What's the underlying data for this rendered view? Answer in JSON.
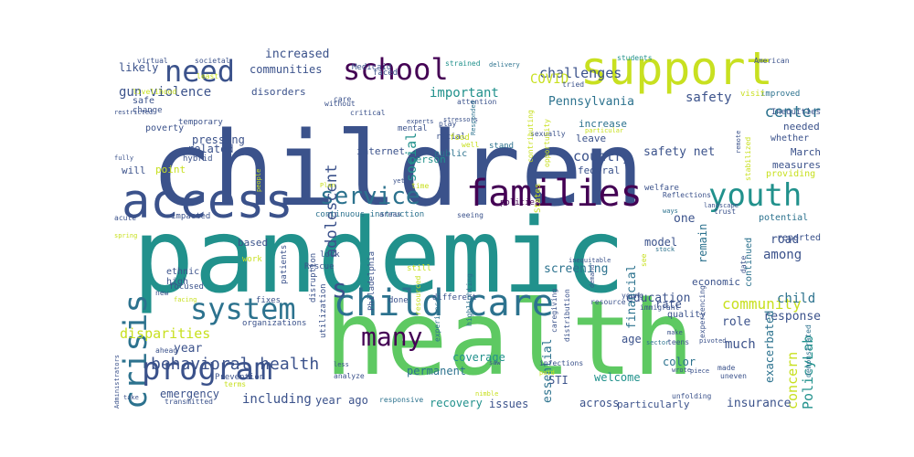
{
  "figure": {
    "background": "#ffffff",
    "palette": [
      "#3b518b",
      "#21918c",
      "#5ec962",
      "#c8e020",
      "#440154",
      "#2c728e",
      "#fde725"
    ]
  },
  "words": [
    {
      "text": "children",
      "color": "#3b528b"
    },
    {
      "text": "pandemic",
      "color": "#21918c"
    },
    {
      "text": "health",
      "color": "#5ec962"
    },
    {
      "text": "support",
      "color": "#c8e020"
    },
    {
      "text": "access",
      "color": "#3b528b"
    },
    {
      "text": "families",
      "color": "#440154"
    },
    {
      "text": "child care",
      "color": "#2c728e"
    },
    {
      "text": "crisis",
      "color": "#2c728e"
    },
    {
      "text": "program",
      "color": "#3b528b"
    },
    {
      "text": "school",
      "color": "#440154"
    },
    {
      "text": "need",
      "color": "#3b528b"
    },
    {
      "text": "youth",
      "color": "#21918c"
    },
    {
      "text": "service",
      "color": "#2c728e"
    },
    {
      "text": "system",
      "color": "#2c728e"
    },
    {
      "text": "many",
      "color": "#440154"
    },
    {
      "text": "behavioral health",
      "color": "#3b528b"
    },
    {
      "text": "adolescent",
      "color": "#3b528b"
    },
    {
      "text": "s",
      "color": "#3b528b"
    },
    {
      "text": "gun violence",
      "color": "#3b528b"
    },
    {
      "text": "challenges",
      "color": "#3b528b"
    },
    {
      "text": "communities",
      "color": "#3b528b"
    },
    {
      "text": "increased",
      "color": "#3b528b"
    },
    {
      "text": "important",
      "color": "#21918c"
    },
    {
      "text": "social",
      "color": "#21918c"
    },
    {
      "text": "Pennsylvania",
      "color": "#2c728e"
    },
    {
      "text": "COVID",
      "color": "#c8e020"
    },
    {
      "text": "safety",
      "color": "#3b528b"
    },
    {
      "text": "center",
      "color": "#2c728e"
    },
    {
      "text": "concern",
      "color": "#c8e020"
    },
    {
      "text": "PolicyLab",
      "color": "#21918c"
    },
    {
      "text": "community",
      "color": "#c8e020"
    },
    {
      "text": "response",
      "color": "#3b528b"
    },
    {
      "text": "education",
      "color": "#3b528b"
    },
    {
      "text": "financial",
      "color": "#2c728e"
    },
    {
      "text": "among",
      "color": "#3b528b"
    },
    {
      "text": "child",
      "color": "#2c728e"
    },
    {
      "text": "screening",
      "color": "#2c728e"
    },
    {
      "text": "country",
      "color": "#3b528b"
    },
    {
      "text": "safety net",
      "color": "#3b528b"
    },
    {
      "text": "person",
      "color": "#21918c"
    },
    {
      "text": "internet",
      "color": "#3b528b"
    },
    {
      "text": "public",
      "color": "#2c728e"
    },
    {
      "text": "likely",
      "color": "#3b528b"
    },
    {
      "text": "pressing",
      "color": "#3b528b"
    },
    {
      "text": "related",
      "color": "#3b528b"
    },
    {
      "text": "disparities",
      "color": "#c8e020"
    },
    {
      "text": "year",
      "color": "#3b528b"
    },
    {
      "text": "emergency",
      "color": "#3b528b"
    },
    {
      "text": "including",
      "color": "#3b528b"
    },
    {
      "text": "year ago",
      "color": "#3b528b"
    },
    {
      "text": "recovery",
      "color": "#21918c"
    },
    {
      "text": "permanent",
      "color": "#2c728e"
    },
    {
      "text": "coverage",
      "color": "#21918c"
    },
    {
      "text": "welcome",
      "color": "#21918c"
    },
    {
      "text": "insurance",
      "color": "#3b528b"
    },
    {
      "text": "across",
      "color": "#3b528b"
    },
    {
      "text": "particularly",
      "color": "#3b528b"
    },
    {
      "text": "issues",
      "color": "#3b528b"
    },
    {
      "text": "STI",
      "color": "#3b528b"
    },
    {
      "text": "essential",
      "color": "#2c728e"
    },
    {
      "text": "much",
      "color": "#3b528b"
    },
    {
      "text": "role",
      "color": "#3b528b"
    },
    {
      "text": "color",
      "color": "#2c728e"
    },
    {
      "text": "age",
      "color": "#3b528b"
    },
    {
      "text": "rate",
      "color": "#3b528b"
    },
    {
      "text": "model",
      "color": "#3b528b"
    },
    {
      "text": "road",
      "color": "#3b528b"
    },
    {
      "text": "one",
      "color": "#3b528b"
    },
    {
      "text": "remain",
      "color": "#2c728e"
    },
    {
      "text": "economic",
      "color": "#3b528b"
    },
    {
      "text": "quality",
      "color": "#3b528b"
    },
    {
      "text": "federal",
      "color": "#3b528b"
    },
    {
      "text": "leave",
      "color": "#3b528b"
    },
    {
      "text": "increase",
      "color": "#2c728e"
    },
    {
      "text": "needed",
      "color": "#3b528b"
    },
    {
      "text": "March",
      "color": "#3b528b"
    },
    {
      "text": "measures",
      "color": "#3b528b"
    },
    {
      "text": "continued",
      "color": "#2c728e"
    },
    {
      "text": "exacerbated",
      "color": "#2c728e"
    },
    {
      "text": "reported",
      "color": "#3b528b"
    },
    {
      "text": "potential",
      "color": "#2c728e"
    },
    {
      "text": "providing",
      "color": "#c8e020"
    },
    {
      "text": "whether",
      "color": "#3b528b"
    },
    {
      "text": "Inequities",
      "color": "#3b528b"
    },
    {
      "text": "improved",
      "color": "#2c728e"
    },
    {
      "text": "visit",
      "color": "#c8e020"
    },
    {
      "text": "based",
      "color": "#3b528b"
    },
    {
      "text": "ethnic",
      "color": "#3b528b"
    },
    {
      "text": "high",
      "color": "#3b528b"
    },
    {
      "text": "point",
      "color": "#c8e020"
    },
    {
      "text": "will",
      "color": "#3b528b"
    },
    {
      "text": "poverty",
      "color": "#3b528b"
    },
    {
      "text": "safe",
      "color": "#3b528b"
    },
    {
      "text": "change",
      "color": "#3b528b"
    },
    {
      "text": "disorders",
      "color": "#3b528b"
    },
    {
      "text": "temporary",
      "color": "#3b528b"
    },
    {
      "text": "hybrid",
      "color": "#3b528b"
    },
    {
      "text": "faced",
      "color": "#3b528b"
    },
    {
      "text": "Medicaid",
      "color": "#3b528b"
    },
    {
      "text": "strained",
      "color": "#21918c"
    },
    {
      "text": "students",
      "color": "#21918c"
    },
    {
      "text": "virtual",
      "color": "#3b528b"
    },
    {
      "text": "societal",
      "color": "#3b528b"
    },
    {
      "text": "least",
      "color": "#c8e020"
    },
    {
      "text": "livelihood",
      "color": "#c8e020"
    },
    {
      "text": "restricted",
      "color": "#3b528b"
    },
    {
      "text": "fully",
      "color": "#3b528b"
    },
    {
      "text": "racial",
      "color": "#3b528b"
    },
    {
      "text": "food",
      "color": "#c8e020"
    },
    {
      "text": "stand",
      "color": "#2c728e"
    },
    {
      "text": "play",
      "color": "#3b528b"
    },
    {
      "text": "mental",
      "color": "#3b528b"
    },
    {
      "text": "stressors",
      "color": "#3b528b"
    },
    {
      "text": "attention",
      "color": "#3b528b"
    },
    {
      "text": "sexually",
      "color": "#3b528b"
    },
    {
      "text": "tried",
      "color": "#3b528b"
    },
    {
      "text": "American",
      "color": "#3b528b"
    },
    {
      "text": "without",
      "color": "#3b528b"
    },
    {
      "text": "critical",
      "color": "#3b528b"
    },
    {
      "text": "experts",
      "color": "#3b528b"
    },
    {
      "text": "care",
      "color": "#3b528b"
    },
    {
      "text": "Responded",
      "color": "#2c728e"
    },
    {
      "text": "delivery",
      "color": "#2c728e"
    },
    {
      "text": "welfare",
      "color": "#3b528b"
    },
    {
      "text": "landscape",
      "color": "#3b528b"
    },
    {
      "text": "remote",
      "color": "#3b528b"
    },
    {
      "text": "stabilized",
      "color": "#c8e020"
    },
    {
      "text": "contributing",
      "color": "#c8e020"
    },
    {
      "text": "opportunity",
      "color": "#c8e020"
    },
    {
      "text": "particular",
      "color": "#c8e020"
    },
    {
      "text": "policies",
      "color": "#440154"
    },
    {
      "text": "well",
      "color": "#c8e020"
    },
    {
      "text": "yet",
      "color": "#3b528b"
    },
    {
      "text": "time",
      "color": "#c8e020"
    },
    {
      "text": "Plan",
      "color": "#c8e020"
    },
    {
      "text": "continuous instruction",
      "color": "#2c728e"
    },
    {
      "text": "impacted",
      "color": "#3b528b"
    },
    {
      "text": "acute",
      "color": "#3b528b"
    },
    {
      "text": "spring",
      "color": "#c8e020"
    },
    {
      "text": "areas",
      "color": "#3b528b"
    },
    {
      "text": "seeing",
      "color": "#3b528b"
    },
    {
      "text": "States",
      "color": "#c8e020"
    },
    {
      "text": "trust",
      "color": "#3b528b"
    },
    {
      "text": "ways",
      "color": "#2c728e"
    },
    {
      "text": "Reflections",
      "color": "#3b528b"
    },
    {
      "text": "date",
      "color": "#3b528b"
    },
    {
      "text": "stock",
      "color": "#2c728e"
    },
    {
      "text": "inequitable",
      "color": "#3b528b"
    },
    {
      "text": "demand",
      "color": "#3b528b"
    },
    {
      "text": "see",
      "color": "#c8e020"
    },
    {
      "text": "focused",
      "color": "#3b528b"
    },
    {
      "text": "work",
      "color": "#c8e020"
    },
    {
      "text": "patients",
      "color": "#3b528b"
    },
    {
      "text": "disruption",
      "color": "#3b528b"
    },
    {
      "text": "look",
      "color": "#3b528b"
    },
    {
      "text": "Rescue",
      "color": "#3b528b"
    },
    {
      "text": "Philadelphia",
      "color": "#3b528b"
    },
    {
      "text": "still",
      "color": "#c8e020"
    },
    {
      "text": "resourced",
      "color": "#c8e020"
    },
    {
      "text": "fixes",
      "color": "#3b528b"
    },
    {
      "text": "organizations",
      "color": "#3b528b"
    },
    {
      "text": "utilization",
      "color": "#3b528b"
    },
    {
      "text": "done",
      "color": "#3b528b"
    },
    {
      "text": "different",
      "color": "#3b528b"
    },
    {
      "text": "highlighting",
      "color": "#2c728e"
    },
    {
      "text": "caregiving",
      "color": "#3b528b"
    },
    {
      "text": "distribution",
      "color": "#3b528b"
    },
    {
      "text": "resource",
      "color": "#3b528b"
    },
    {
      "text": "young",
      "color": "#3b528b"
    },
    {
      "text": "immigrant",
      "color": "#3b528b"
    },
    {
      "text": "make",
      "color": "#3b528b"
    },
    {
      "text": "teens",
      "color": "#3b528b"
    },
    {
      "text": "sector",
      "color": "#2c728e"
    },
    {
      "text": "new",
      "color": "#3b528b"
    },
    {
      "text": "facing",
      "color": "#c8e020"
    },
    {
      "text": "ahead",
      "color": "#3b528b"
    },
    {
      "text": "Prevention",
      "color": "#3b528b"
    },
    {
      "text": "less",
      "color": "#3b528b"
    },
    {
      "text": "analyze",
      "color": "#3b528b"
    },
    {
      "text": "experience",
      "color": "#2c728e"
    },
    {
      "text": "saw",
      "color": "#3b528b"
    },
    {
      "text": "infections",
      "color": "#3b528b"
    },
    {
      "text": "paid",
      "color": "#c8e020"
    },
    {
      "text": "nimble",
      "color": "#c8e020"
    },
    {
      "text": "wrote",
      "color": "#3b528b"
    },
    {
      "text": "pivoted",
      "color": "#3b528b"
    },
    {
      "text": "piece",
      "color": "#3b528b"
    },
    {
      "text": "experiencing",
      "color": "#3b528b"
    },
    {
      "text": "uneven",
      "color": "#3b528b"
    },
    {
      "text": "unfolding",
      "color": "#3b528b"
    },
    {
      "text": "made",
      "color": "#3b528b"
    },
    {
      "text": "demonstrated",
      "color": "#2c728e"
    },
    {
      "text": "responsive",
      "color": "#2c728e"
    },
    {
      "text": "transmitted",
      "color": "#3b528b"
    },
    {
      "text": "Administrators",
      "color": "#3b528b"
    },
    {
      "text": "take",
      "color": "#3b528b"
    },
    {
      "text": "terms",
      "color": "#c8e020"
    },
    {
      "text": "people",
      "color": "#c8e020"
    }
  ]
}
